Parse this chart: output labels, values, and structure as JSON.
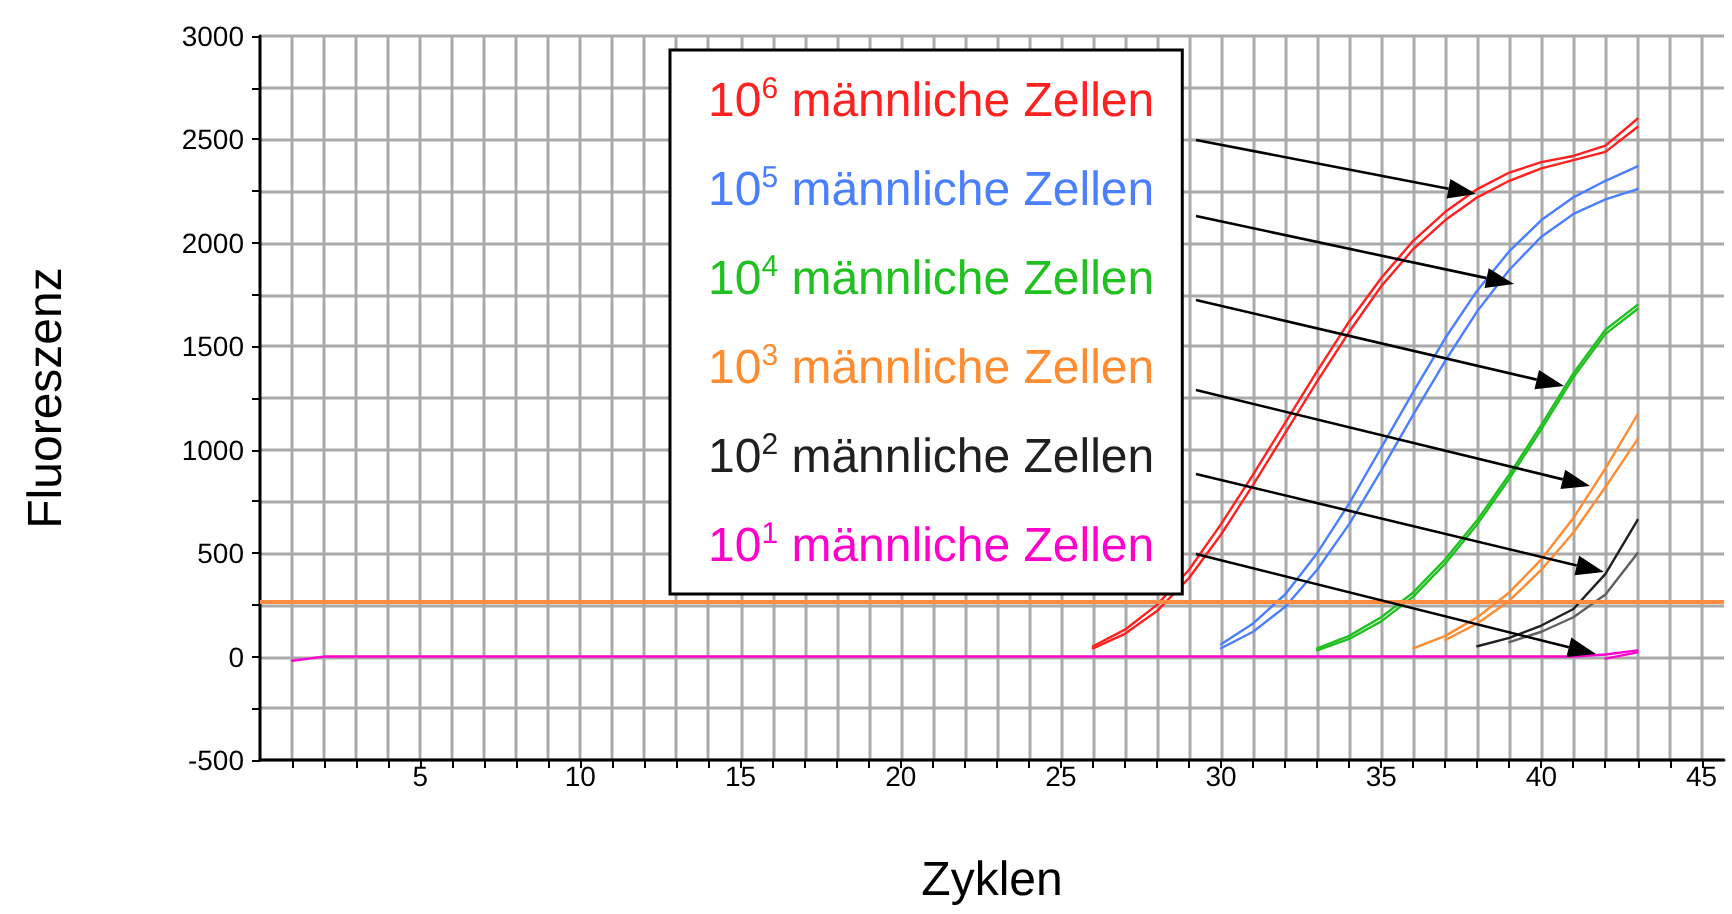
{
  "chart_data": {
    "type": "line",
    "xlabel": "Zyklen",
    "ylabel": "Fluoreszenz",
    "x": [
      1,
      2,
      3,
      4,
      5,
      6,
      7,
      8,
      9,
      10,
      11,
      12,
      13,
      14,
      15,
      16,
      17,
      18,
      19,
      20,
      21,
      22,
      23,
      24,
      25,
      26,
      27,
      28,
      29,
      30,
      31,
      32,
      33,
      34,
      35,
      36,
      37,
      38,
      39,
      40,
      41,
      42,
      43
    ],
    "xlim": [
      0,
      45.7
    ],
    "xticks": [
      {
        "value": 1,
        "label": null
      },
      {
        "value": 2,
        "label": null
      },
      {
        "value": 3,
        "label": null
      },
      {
        "value": 4,
        "label": null
      },
      5,
      {
        "value": 6,
        "label": null
      },
      {
        "value": 7,
        "label": null
      },
      {
        "value": 8,
        "label": null
      },
      {
        "value": 9,
        "label": null
      },
      10,
      {
        "value": 11,
        "label": null
      },
      {
        "value": 12,
        "label": null
      },
      {
        "value": 13,
        "label": null
      },
      {
        "value": 14,
        "label": null
      },
      15,
      {
        "value": 16,
        "label": null
      },
      {
        "value": 17,
        "label": null
      },
      {
        "value": 18,
        "label": null
      },
      {
        "value": 19,
        "label": null
      },
      20,
      {
        "value": 21,
        "label": null
      },
      {
        "value": 22,
        "label": null
      },
      {
        "value": 23,
        "label": null
      },
      {
        "value": 24,
        "label": null
      },
      25,
      {
        "value": 26,
        "label": null
      },
      {
        "value": 27,
        "label": null
      },
      {
        "value": 28,
        "label": null
      },
      {
        "value": 29,
        "label": null
      },
      30,
      {
        "value": 31,
        "label": null
      },
      {
        "value": 32,
        "label": null
      },
      {
        "value": 33,
        "label": null
      },
      {
        "value": 34,
        "label": null
      },
      35,
      {
        "value": 36,
        "label": null
      },
      {
        "value": 37,
        "label": null
      },
      {
        "value": 38,
        "label": null
      },
      {
        "value": 39,
        "label": null
      },
      40,
      {
        "value": 41,
        "label": null
      },
      {
        "value": 42,
        "label": null
      },
      {
        "value": 43,
        "label": null
      },
      {
        "value": 44,
        "label": null
      },
      45
    ],
    "ylim": [
      -500,
      3000
    ],
    "yticks": [
      -500,
      {
        "value": -250,
        "label": null
      },
      0,
      {
        "value": 250,
        "label": null
      },
      500,
      {
        "value": 750,
        "label": null
      },
      1000,
      {
        "value": 1250,
        "label": null
      },
      1500,
      {
        "value": 1750,
        "label": null
      },
      2000,
      {
        "value": 2250,
        "label": null
      },
      2500,
      {
        "value": 2750,
        "label": null
      },
      3000
    ],
    "grid": true,
    "legend": "top",
    "marker": "none",
    "line_style": "solid",
    "ref_lines": [
      {
        "axis": "y",
        "value": 270,
        "color": "#ff8c40"
      }
    ],
    "series": [
      {
        "name": "10$^{6}$ männliche Zellen",
        "color": "#ff2020",
        "values": [
          null,
          null,
          null,
          null,
          null,
          null,
          null,
          null,
          null,
          null,
          null,
          null,
          null,
          null,
          null,
          null,
          null,
          null,
          null,
          null,
          null,
          null,
          null,
          null,
          null,
          50,
          130,
          250,
          420,
          640,
          880,
          1130,
          1380,
          1620,
          1830,
          2010,
          2150,
          2260,
          2340,
          2390,
          2420,
          2470,
          2600
        ]
      },
      {
        "color": "#ff2020",
        "values": [
          null,
          null,
          null,
          null,
          null,
          null,
          null,
          null,
          null,
          null,
          null,
          null,
          null,
          null,
          null,
          null,
          null,
          null,
          null,
          null,
          null,
          null,
          null,
          null,
          null,
          40,
          110,
          220,
          380,
          590,
          830,
          1080,
          1330,
          1570,
          1790,
          1970,
          2110,
          2220,
          2300,
          2360,
          2400,
          2440,
          2560
        ]
      },
      {
        "name": "10$^{5}$ männliche Zellen",
        "color": "#4a7fff",
        "values": [
          null,
          null,
          null,
          null,
          null,
          null,
          null,
          null,
          null,
          null,
          null,
          null,
          null,
          null,
          null,
          null,
          null,
          null,
          null,
          null,
          null,
          null,
          null,
          null,
          null,
          null,
          null,
          null,
          null,
          60,
          160,
          300,
          500,
          740,
          1010,
          1280,
          1540,
          1770,
          1960,
          2110,
          2220,
          2300,
          2370
        ]
      },
      {
        "color": "#4a7fff",
        "values": [
          null,
          null,
          null,
          null,
          null,
          null,
          null,
          null,
          null,
          null,
          null,
          null,
          null,
          null,
          null,
          null,
          null,
          null,
          null,
          null,
          null,
          null,
          null,
          null,
          null,
          null,
          null,
          null,
          null,
          40,
          120,
          240,
          420,
          640,
          900,
          1170,
          1430,
          1670,
          1870,
          2030,
          2140,
          2210,
          2260
        ]
      },
      {
        "name": "10$^{4}$ männliche Zellen",
        "color": "#20c020",
        "values": [
          null,
          null,
          null,
          null,
          null,
          null,
          null,
          null,
          null,
          null,
          null,
          null,
          null,
          null,
          null,
          null,
          null,
          null,
          null,
          null,
          null,
          null,
          null,
          null,
          null,
          null,
          null,
          null,
          null,
          null,
          null,
          null,
          40,
          100,
          190,
          310,
          470,
          660,
          880,
          1120,
          1370,
          1580,
          1700
        ]
      },
      {
        "color": "#20c020",
        "values": [
          null,
          null,
          null,
          null,
          null,
          null,
          null,
          null,
          null,
          null,
          null,
          null,
          null,
          null,
          null,
          null,
          null,
          null,
          null,
          null,
          null,
          null,
          null,
          null,
          null,
          null,
          null,
          null,
          null,
          null,
          null,
          null,
          30,
          85,
          170,
          290,
          450,
          640,
          860,
          1100,
          1350,
          1560,
          1680
        ]
      },
      {
        "name": "10$^{3}$ männliche Zellen",
        "color": "#ff8c30",
        "values": [
          null,
          null,
          null,
          null,
          null,
          null,
          null,
          null,
          null,
          null,
          null,
          null,
          null,
          null,
          null,
          null,
          null,
          null,
          null,
          null,
          null,
          null,
          null,
          null,
          null,
          null,
          null,
          null,
          null,
          null,
          null,
          null,
          null,
          null,
          null,
          40,
          100,
          190,
          310,
          470,
          670,
          910,
          1170
        ]
      },
      {
        "color": "#ff8c30",
        "values": [
          null,
          null,
          null,
          null,
          null,
          null,
          null,
          null,
          null,
          null,
          null,
          null,
          null,
          null,
          null,
          null,
          null,
          null,
          null,
          null,
          null,
          null,
          null,
          null,
          null,
          null,
          null,
          null,
          null,
          null,
          null,
          null,
          null,
          null,
          null,
          null,
          80,
          160,
          270,
          420,
          600,
          820,
          1050
        ]
      },
      {
        "name": "10$^{2}$ männliche Zellen",
        "color": "#202020",
        "values": [
          null,
          null,
          null,
          null,
          null,
          null,
          null,
          null,
          null,
          null,
          null,
          null,
          null,
          null,
          null,
          null,
          null,
          null,
          null,
          null,
          null,
          null,
          null,
          null,
          null,
          null,
          null,
          null,
          null,
          null,
          null,
          null,
          null,
          null,
          null,
          null,
          null,
          50,
          90,
          150,
          230,
          400,
          660
        ]
      },
      {
        "color": "#606060",
        "values": [
          null,
          null,
          null,
          null,
          null,
          null,
          null,
          null,
          null,
          null,
          null,
          null,
          null,
          null,
          null,
          null,
          null,
          null,
          null,
          null,
          null,
          null,
          null,
          null,
          null,
          null,
          null,
          null,
          null,
          null,
          null,
          null,
          null,
          null,
          null,
          null,
          null,
          null,
          70,
          120,
          190,
          300,
          500
        ]
      },
      {
        "name": "10$^{1}$ männliche Zellen",
        "color": "#ff00cc",
        "values": [
          -20,
          0,
          0,
          0,
          0,
          0,
          0,
          0,
          0,
          0,
          0,
          0,
          0,
          0,
          0,
          0,
          0,
          0,
          0,
          0,
          0,
          0,
          0,
          0,
          0,
          0,
          0,
          0,
          0,
          0,
          0,
          0,
          0,
          0,
          0,
          0,
          0,
          0,
          0,
          0,
          0,
          10,
          30
        ]
      },
      {
        "color": "#ff00cc",
        "values": [
          null,
          null,
          null,
          null,
          null,
          null,
          null,
          null,
          null,
          null,
          null,
          null,
          null,
          null,
          null,
          null,
          null,
          null,
          null,
          null,
          null,
          null,
          null,
          null,
          null,
          null,
          null,
          null,
          null,
          null,
          null,
          null,
          null,
          null,
          null,
          null,
          null,
          null,
          null,
          null,
          null,
          -10,
          20
        ]
      }
    ]
  }
}
